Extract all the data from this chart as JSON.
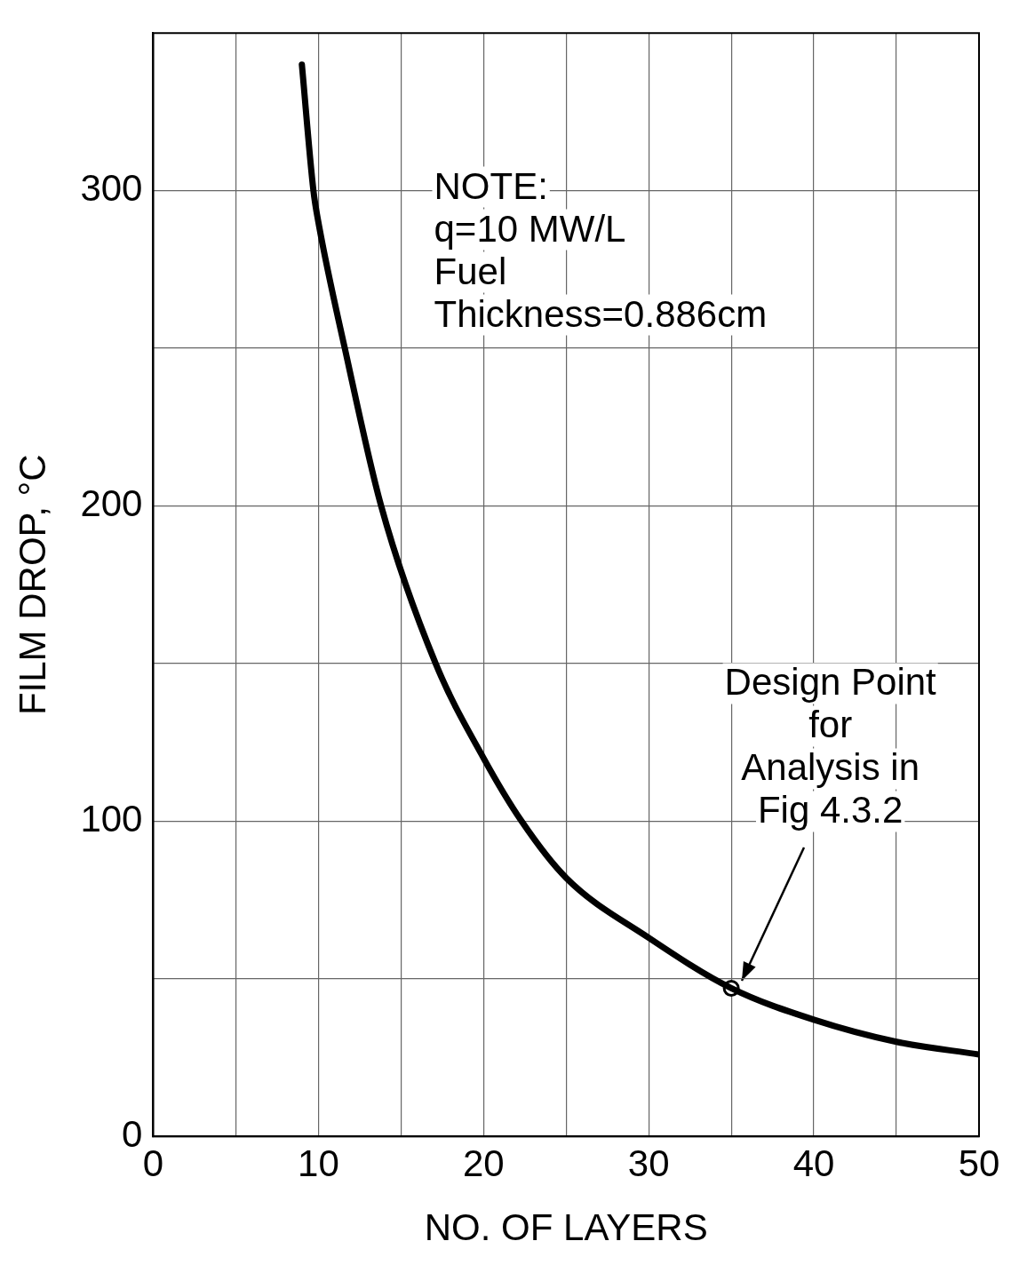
{
  "chart_data": {
    "type": "line",
    "xlabel": "NO. OF LAYERS",
    "ylabel": "FILM DROP, °C",
    "xlim": [
      0,
      50
    ],
    "xticks": [
      0,
      {
        "value": 5,
        "label": null
      },
      10,
      {
        "value": 15,
        "label": null
      },
      20,
      {
        "value": 25,
        "label": null
      },
      30,
      {
        "value": 35,
        "label": null
      },
      40,
      {
        "value": 45,
        "label": null
      },
      50
    ],
    "ylim": [
      0,
      350
    ],
    "yticks": [
      0,
      {
        "value": 50,
        "label": null
      },
      100,
      {
        "value": 150,
        "label": null
      },
      200,
      {
        "value": 250,
        "label": null
      },
      300
    ],
    "grid": true,
    "legend": false,
    "series": [
      {
        "color": "#000000",
        "marker": "none",
        "line_style": "solid",
        "x": [
          9,
          9.7,
          10,
          11.6,
          13.8,
          17.1,
          20,
          22.3,
          25,
          30,
          35,
          40,
          45,
          50
        ],
        "values": [
          340,
          300,
          290,
          250,
          200,
          150,
          120,
          100,
          82,
          63,
          47,
          37,
          30,
          26
        ]
      },
      {
        "type": "scatter",
        "color": "#000000",
        "marker": "circle",
        "x": [
          35
        ],
        "values": [
          47
        ]
      }
    ],
    "annotations": [
      "NOTE:\nq=10 MW/L\nFuel\nThickness=0.886cm",
      "Design Point\nfor\nAnalysis in\nFig 4.3.2"
    ]
  }
}
